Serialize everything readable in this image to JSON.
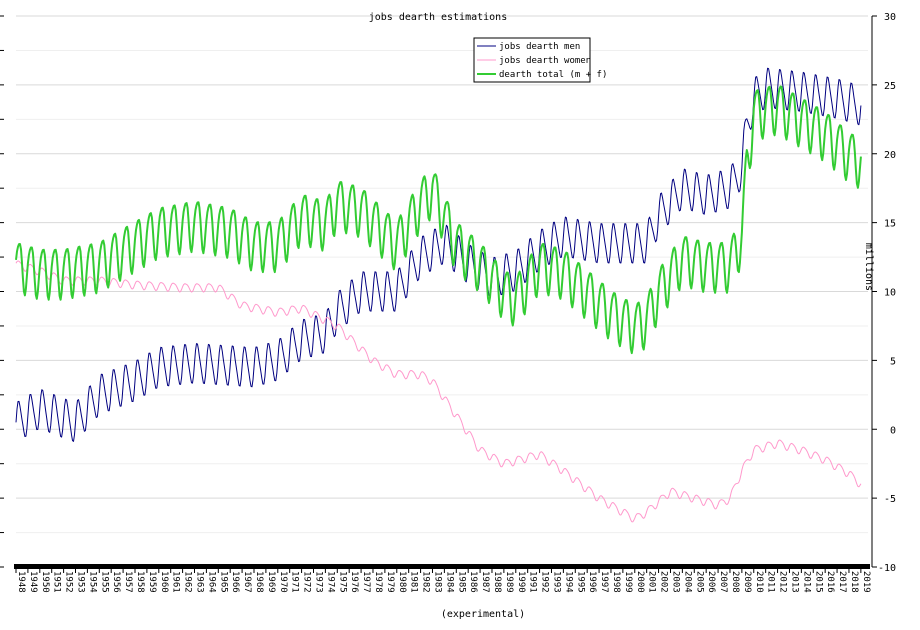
{
  "chart_data": {
    "type": "line",
    "title": "jobs dearth estimations",
    "xlabel": "(experimental)",
    "ylabel": "millions",
    "xlim": [
      1948,
      2019.6
    ],
    "ylim": [
      -10,
      30
    ],
    "y_ticks": [
      30,
      25,
      20,
      15,
      10,
      5,
      0,
      -5,
      -10
    ],
    "x_ticks": [
      "1948",
      "1949",
      "1950",
      "1951",
      "1952",
      "1953",
      "1954",
      "1955",
      "1956",
      "1957",
      "1958",
      "1959",
      "1960",
      "1961",
      "1962",
      "1963",
      "1964",
      "1965",
      "1966",
      "1967",
      "1968",
      "1969",
      "1970",
      "1971",
      "1972",
      "1973",
      "1974",
      "1975",
      "1976",
      "1977",
      "1978",
      "1979",
      "1980",
      "1981",
      "1982",
      "1983",
      "1984",
      "1985",
      "1986",
      "1987",
      "1988",
      "1989",
      "1990",
      "1991",
      "1992",
      "1993",
      "1994",
      "1995",
      "1996",
      "1997",
      "1998",
      "1999",
      "2000",
      "2001",
      "2002",
      "2003",
      "2004",
      "2005",
      "2006",
      "2007",
      "2008",
      "2009",
      "2010",
      "2011",
      "2012",
      "2013",
      "2014",
      "2015",
      "2016",
      "2017",
      "2018",
      "2019"
    ],
    "grid": true,
    "legend_position": "top-center",
    "series": [
      {
        "name": "jobs dearth men",
        "color": "#000080",
        "base_points": [
          [
            1948,
            0.5
          ],
          [
            1950,
            1.5
          ],
          [
            1952,
            0.8
          ],
          [
            1953,
            0.5
          ],
          [
            1955,
            2.5
          ],
          [
            1958,
            3.5
          ],
          [
            1960,
            4.5
          ],
          [
            1963,
            4.8
          ],
          [
            1968,
            4.5
          ],
          [
            1970,
            5
          ],
          [
            1972,
            6.5
          ],
          [
            1974,
            7
          ],
          [
            1975,
            8.5
          ],
          [
            1977,
            10
          ],
          [
            1980,
            10
          ],
          [
            1982,
            12.5
          ],
          [
            1984,
            13.5
          ],
          [
            1986,
            12
          ],
          [
            1988,
            11
          ],
          [
            1990,
            11.5
          ],
          [
            1992,
            13
          ],
          [
            1994,
            14
          ],
          [
            1997,
            13.5
          ],
          [
            2000,
            13.5
          ],
          [
            2001,
            13.5
          ],
          [
            2002,
            15.5
          ],
          [
            2004,
            17.5
          ],
          [
            2006,
            17
          ],
          [
            2008,
            17.5
          ],
          [
            2009,
            19
          ],
          [
            2009.4,
            22
          ],
          [
            2010,
            24
          ],
          [
            2011,
            24.8
          ],
          [
            2014,
            24.5
          ],
          [
            2017,
            24
          ],
          [
            2019,
            23.5
          ]
        ],
        "seasonal_amplitude": 1.4
      },
      {
        "name": "jobs dearth women",
        "color": "#ff99cc",
        "base_points": [
          [
            1948,
            12
          ],
          [
            1950,
            11.5
          ],
          [
            1952,
            10.8
          ],
          [
            1955,
            10.8
          ],
          [
            1958,
            10.5
          ],
          [
            1962,
            10.3
          ],
          [
            1965,
            10.3
          ],
          [
            1967,
            9
          ],
          [
            1970,
            8.5
          ],
          [
            1972,
            8.8
          ],
          [
            1975,
            7.5
          ],
          [
            1978,
            5
          ],
          [
            1980,
            4
          ],
          [
            1982,
            4
          ],
          [
            1983,
            3.5
          ],
          [
            1985,
            1
          ],
          [
            1987,
            -1.5
          ],
          [
            1989,
            -2.5
          ],
          [
            1992,
            -1.8
          ],
          [
            1994,
            -3
          ],
          [
            1997,
            -5
          ],
          [
            1999,
            -6
          ],
          [
            2000,
            -6.5
          ],
          [
            2001,
            -6
          ],
          [
            2003,
            -4.5
          ],
          [
            2005,
            -5
          ],
          [
            2007,
            -5.5
          ],
          [
            2008,
            -5
          ],
          [
            2009,
            -3
          ],
          [
            2010,
            -1.5
          ],
          [
            2012,
            -1
          ],
          [
            2014,
            -1.5
          ],
          [
            2016,
            -2.2
          ],
          [
            2018,
            -3.2
          ],
          [
            2019,
            -4
          ]
        ],
        "seasonal_amplitude": 0.3
      },
      {
        "name": "dearth total (m + f)",
        "color": "#33cc33",
        "base_points": [
          [
            1948,
            12
          ],
          [
            1950,
            11.5
          ],
          [
            1952,
            11.5
          ],
          [
            1955,
            12
          ],
          [
            1957,
            13
          ],
          [
            1960,
            14.5
          ],
          [
            1963,
            15
          ],
          [
            1966,
            14.5
          ],
          [
            1968,
            13.5
          ],
          [
            1970,
            13.5
          ],
          [
            1972,
            15.5
          ],
          [
            1974,
            15
          ],
          [
            1975,
            16.5
          ],
          [
            1977,
            16
          ],
          [
            1980,
            13.5
          ],
          [
            1982,
            16.5
          ],
          [
            1983,
            17.5
          ],
          [
            1985,
            13.5
          ],
          [
            1987,
            12
          ],
          [
            1989,
            10
          ],
          [
            1990,
            9.5
          ],
          [
            1992,
            12
          ],
          [
            1994,
            11.5
          ],
          [
            1996,
            10
          ],
          [
            1998,
            8.5
          ],
          [
            2000,
            7.5
          ],
          [
            2001,
            8
          ],
          [
            2002,
            10
          ],
          [
            2004,
            12.5
          ],
          [
            2006,
            12
          ],
          [
            2008,
            12
          ],
          [
            2009,
            14
          ],
          [
            2009.4,
            19
          ],
          [
            2010,
            23
          ],
          [
            2012,
            23.5
          ],
          [
            2014,
            22.5
          ],
          [
            2016,
            21.5
          ],
          [
            2018,
            20
          ],
          [
            2019,
            19.5
          ]
        ],
        "seasonal_amplitude": 1.8
      }
    ]
  }
}
